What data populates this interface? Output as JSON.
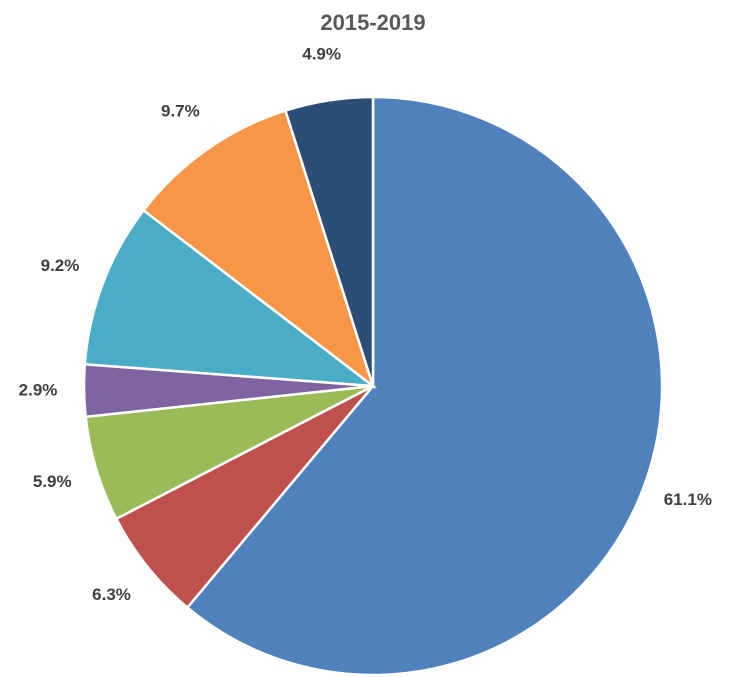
{
  "chart_data": {
    "type": "pie",
    "title": "2015-2019",
    "values": [
      61.1,
      6.3,
      5.9,
      2.9,
      9.2,
      9.7,
      4.9
    ],
    "value_labels": [
      "61.1%",
      "6.3%",
      "5.9%",
      "2.9%",
      "9.2%",
      "9.7%",
      "4.9%"
    ],
    "colors": [
      "#4f81bd",
      "#c0504d",
      "#9bbb59",
      "#8064a2",
      "#4bacc6",
      "#f79646",
      "#2c4d75"
    ]
  }
}
